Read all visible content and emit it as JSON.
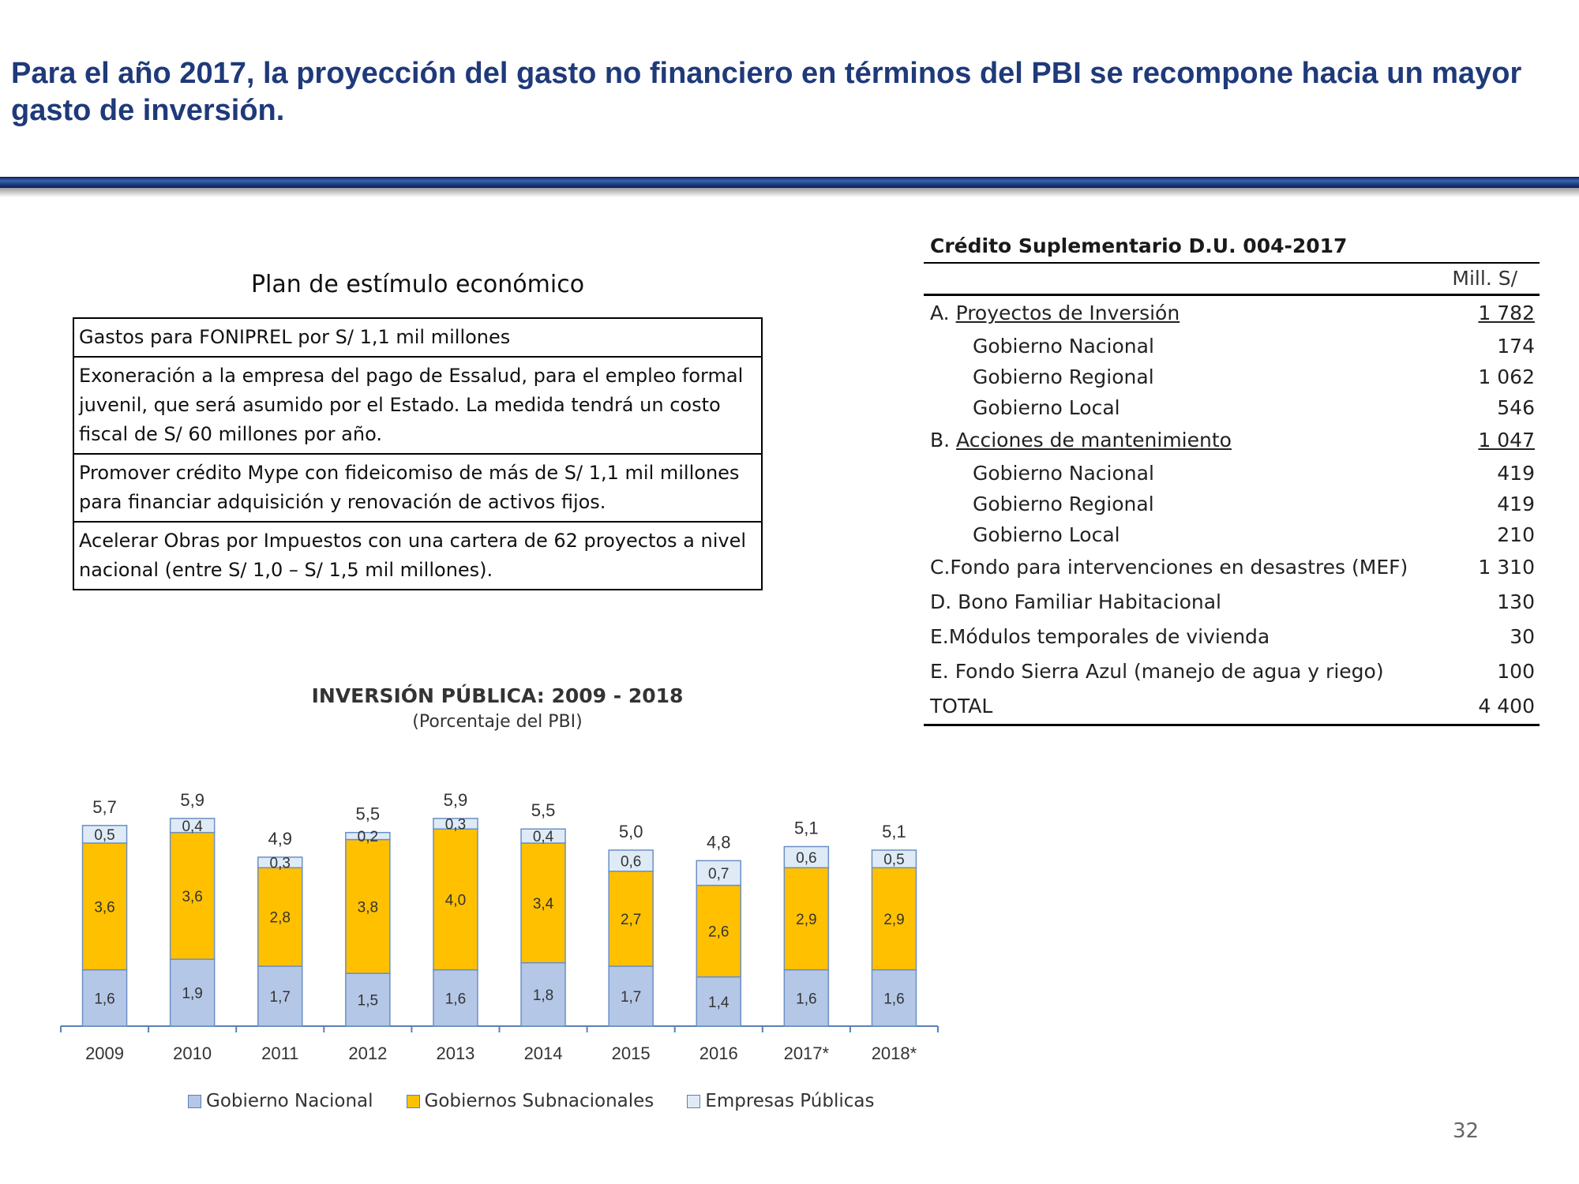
{
  "header": {
    "headline": "Para el año 2017, la proyección del gasto no financiero en términos del PBI se recompone hacia un mayor gasto de inversión."
  },
  "plan": {
    "title": "Plan de estímulo económico",
    "rows": [
      "Gastos para FONIPREL por S/ 1,1 mil millones",
      "Exoneración a la empresa del pago de Essalud, para el empleo formal juvenil, que será asumido por el Estado. La medida tendrá un costo fiscal de S/ 60 millones por año.",
      "Promover crédito Mype con fideicomiso de más de S/ 1,1 mil millones para financiar adquisición y renovación de activos fijos.",
      "Acelerar Obras por Impuestos con una cartera de 62 proyectos a nivel nacional (entre S/ 1,0 – S/ 1,5 mil millones)."
    ]
  },
  "credit": {
    "title": "Crédito Suplementario D.U. 004-2017",
    "unit": "Mill. S/",
    "rows": [
      {
        "prefix": "A. ",
        "label": "Proyectos de Inversión",
        "value": "1 782"
      },
      {
        "prefix": "",
        "label": "Gobierno Nacional",
        "value": "174"
      },
      {
        "prefix": "",
        "label": "Gobierno Regional",
        "value": "1 062"
      },
      {
        "prefix": "",
        "label": "Gobierno Local",
        "value": "546"
      },
      {
        "prefix": "B. ",
        "label": "Acciones de mantenimiento",
        "value": "1 047"
      },
      {
        "prefix": "",
        "label": "Gobierno Nacional",
        "value": "419"
      },
      {
        "prefix": "",
        "label": "Gobierno Regional",
        "value": "419"
      },
      {
        "prefix": "",
        "label": "Gobierno Local",
        "value": "210"
      },
      {
        "prefix": "",
        "label": "C.Fondo para intervenciones en desastres (MEF)",
        "value": "1 310"
      },
      {
        "prefix": "",
        "label": "D. Bono Familiar Habitacional",
        "value": "130"
      },
      {
        "prefix": "",
        "label": "E.Módulos temporales de vivienda",
        "value": "30"
      },
      {
        "prefix": "",
        "label": "E. Fondo Sierra Azul (manejo de agua y riego)",
        "value": "100"
      },
      {
        "prefix": "",
        "label": "TOTAL",
        "value": "4 400"
      }
    ]
  },
  "chart_data": {
    "type": "bar",
    "stacked": true,
    "title": "INVERSIÓN PÚBLICA: 2009 - 2018",
    "subtitle": "(Porcentaje del PBI)",
    "categories": [
      "2009",
      "2010",
      "2011",
      "2012",
      "2013",
      "2014",
      "2015",
      "2016",
      "2017*",
      "2018*"
    ],
    "series": [
      {
        "name": "Gobierno Nacional",
        "color": "#b4c7e7",
        "values": [
          1.6,
          1.9,
          1.7,
          1.5,
          1.6,
          1.8,
          1.7,
          1.4,
          1.6,
          1.6
        ],
        "labels": [
          "1,6",
          "1,9",
          "1,7",
          "1,5",
          "1,6",
          "1,8",
          "1,7",
          "1,4",
          "1,6",
          "1,6"
        ]
      },
      {
        "name": "Gobiernos Subnacionales",
        "color": "#ffc000",
        "values": [
          3.6,
          3.6,
          2.8,
          3.8,
          4.0,
          3.4,
          2.7,
          2.6,
          2.9,
          2.9
        ],
        "labels": [
          "3,6",
          "3,6",
          "2,8",
          "3,8",
          "4,0",
          "3,4",
          "2,7",
          "2,6",
          "2,9",
          "2,9"
        ]
      },
      {
        "name": "Empresas Públicas",
        "color": "#deebf7",
        "values": [
          0.5,
          0.4,
          0.3,
          0.2,
          0.3,
          0.4,
          0.6,
          0.7,
          0.6,
          0.5
        ],
        "labels": [
          "0,5",
          "0,4",
          "0,3",
          "0,2",
          "0,3",
          "0,4",
          "0,6",
          "0,7",
          "0,6",
          "0,5"
        ]
      }
    ],
    "totals": [
      5.7,
      5.9,
      4.9,
      5.5,
      5.9,
      5.5,
      5.0,
      4.8,
      5.1,
      5.1
    ],
    "total_labels": [
      "5,7",
      "5,9",
      "4,9",
      "5,5",
      "5,9",
      "5,5",
      "5,0",
      "4,8",
      "5,1",
      "5,1"
    ],
    "legend_position": "bottom",
    "grid": false
  },
  "footer": {
    "page_number": "32"
  }
}
